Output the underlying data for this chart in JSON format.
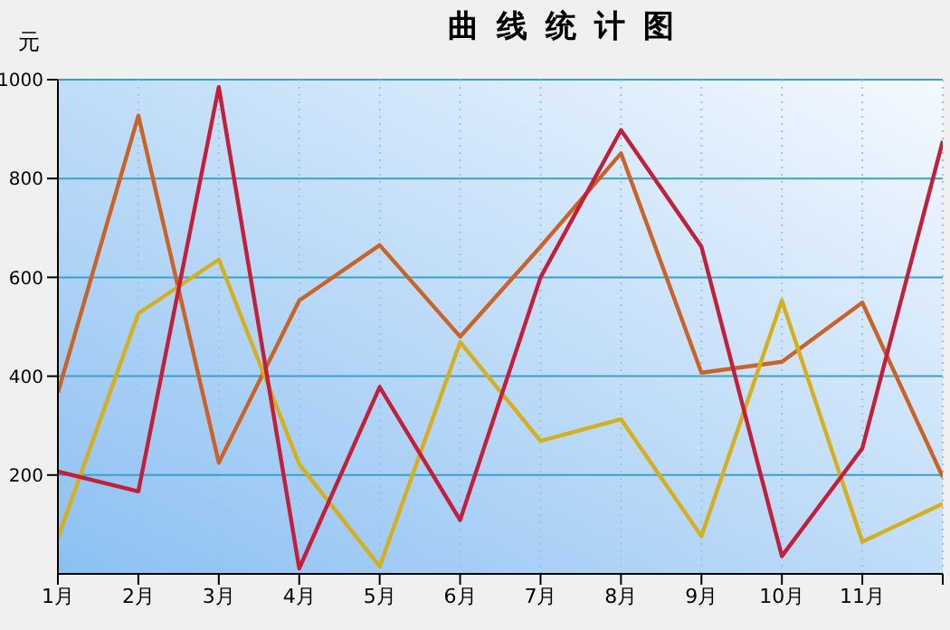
{
  "chart_data": {
    "type": "line",
    "title": "曲线统计图",
    "ylabel": "元",
    "categories": [
      "1月",
      "2月",
      "3月",
      "4月",
      "5月",
      "6月",
      "7月",
      "8月",
      "9月",
      "10月",
      "11月",
      null
    ],
    "series": [
      {
        "color": "#c8642a",
        "values": [
          367,
          927,
          225,
          553,
          665,
          480,
          662,
          851,
          407,
          429,
          549,
          196
        ]
      },
      {
        "color": "#d4b020",
        "values": [
          73,
          527,
          636,
          222,
          15,
          469,
          269,
          313,
          76,
          553,
          65,
          142
        ]
      },
      {
        "color": "#c0203a",
        "values": [
          207,
          167,
          985,
          11,
          378,
          109,
          600,
          898,
          662,
          36,
          254,
          876
        ]
      }
    ],
    "ylim": [
      0,
      1000
    ],
    "yticks": [
      200,
      400,
      600,
      800,
      1000
    ],
    "grid": true,
    "legend": false,
    "marker": "none",
    "line_style": "solid"
  }
}
